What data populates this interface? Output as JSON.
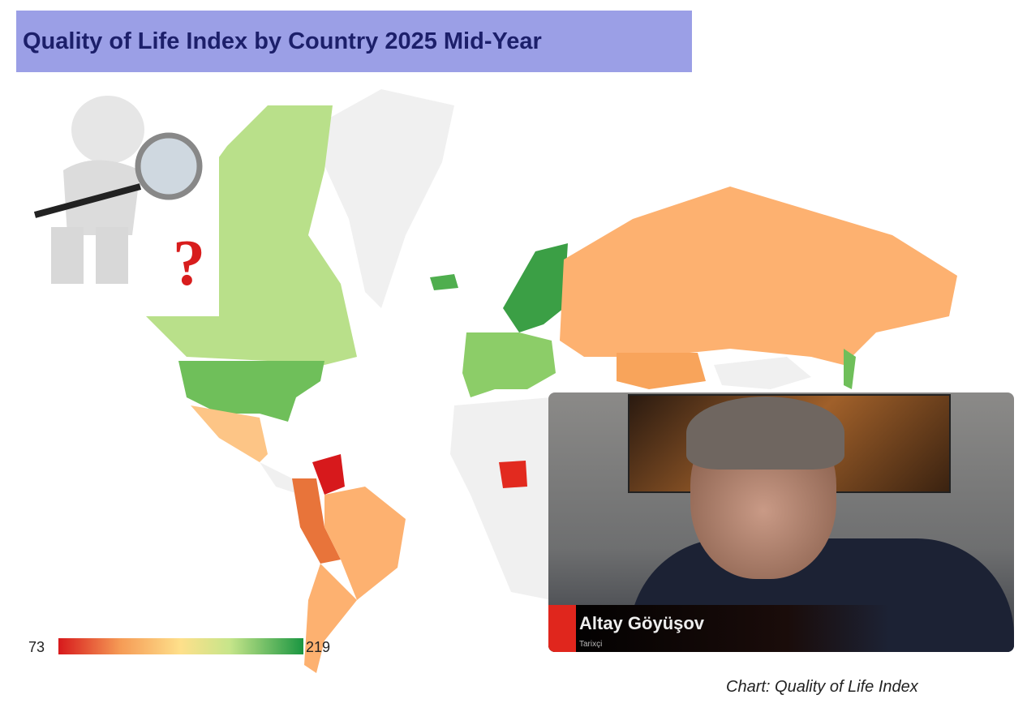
{
  "title": "Quality of Life Index by Country 2025 Mid-Year",
  "legend": {
    "min": "73",
    "max": "219",
    "colors": [
      "#d7191c",
      "#f59a55",
      "#fee08b",
      "#c6e58a",
      "#1a9641"
    ]
  },
  "video": {
    "name": "Altay Göyüşov",
    "role": "Tarixçi"
  },
  "source": "Chart: Quality of Life Index",
  "icons": {
    "illustration": "person-with-magnifier-question-icon"
  }
}
